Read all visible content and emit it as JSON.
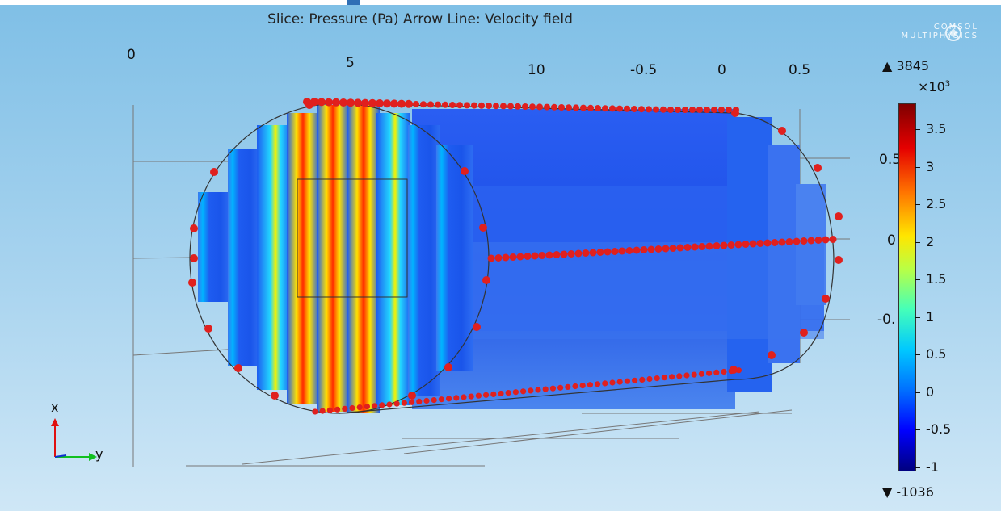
{
  "plot": {
    "title": "Slice: Pressure (Pa)  Arrow Line: Velocity field",
    "brand": {
      "line1": "COMSOL",
      "line2": "MULTIPHYSICS"
    },
    "axis_ticks": [
      {
        "name": "tick-0",
        "label": "0"
      },
      {
        "name": "tick-5",
        "label": "5"
      },
      {
        "name": "tick-10",
        "label": "10"
      },
      {
        "name": "tick-neg-0-5",
        "label": "-0.5"
      },
      {
        "name": "tick-0b",
        "label": "0"
      },
      {
        "name": "tick-0-5",
        "label": "0.5"
      }
    ],
    "side_ticks": [
      {
        "name": "side-tick-0-5",
        "label": "0.5"
      },
      {
        "name": "side-tick-0",
        "label": "0"
      },
      {
        "name": "side-tick-neg",
        "label": "-0."
      }
    ],
    "triad": {
      "x": "x",
      "y": "y"
    }
  },
  "legend": {
    "max_label": "▲ 3845",
    "exponent_base": "×10",
    "exponent_power": "3",
    "min_label": "▼ -1036",
    "values": [
      "3.5",
      "3",
      "2.5",
      "2",
      "1.5",
      "1",
      "0.5",
      "0",
      "-0.5",
      "-1"
    ],
    "range": [
      -1.036,
      3.845
    ]
  },
  "colors": {
    "background_top": "#7fbfe6",
    "background_bottom": "#cfe7f6",
    "arrow": "#e0201e",
    "slice_base": "#1e5cf0"
  }
}
